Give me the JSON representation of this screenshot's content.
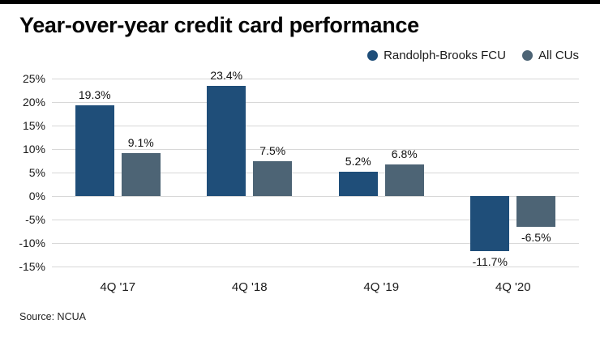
{
  "header": {
    "title": "Year-over-year credit card performance"
  },
  "legend": [
    {
      "label": "Randolph-Brooks FCU",
      "color": "#1f4e79"
    },
    {
      "label": "All CUs",
      "color": "#4d6475"
    }
  ],
  "source": "Source: NCUA",
  "chart_data": {
    "type": "bar",
    "title": "Year-over-year credit card performance",
    "categories": [
      "4Q '17",
      "4Q '18",
      "4Q '19",
      "4Q '20"
    ],
    "series": [
      {
        "name": "Randolph-Brooks FCU",
        "color": "#1f4e79",
        "values": [
          19.3,
          23.4,
          5.2,
          -11.7
        ],
        "labels": [
          "19.3%",
          "23.4%",
          "5.2%",
          "-11.7%"
        ]
      },
      {
        "name": "All CUs",
        "color": "#4d6475",
        "values": [
          9.1,
          7.5,
          6.8,
          -6.5
        ],
        "labels": [
          "9.1%",
          "7.5%",
          "6.8%",
          "-6.5%"
        ]
      }
    ],
    "y_axis": {
      "min": -15,
      "max": 25,
      "step": 5,
      "tick_labels": [
        "25%",
        "20%",
        "15%",
        "10%",
        "5%",
        "0%",
        "-5%",
        "-10%",
        "-15%"
      ]
    },
    "grid": true,
    "legend_position": "top-right"
  }
}
